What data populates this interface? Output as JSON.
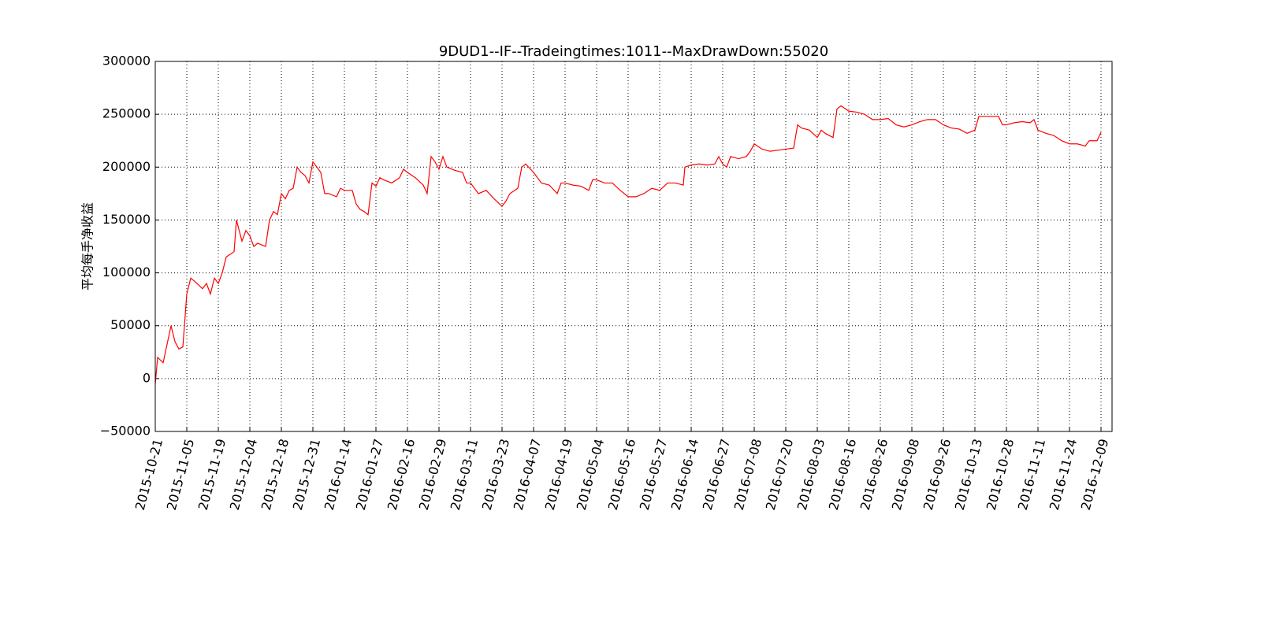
{
  "chart_data": {
    "type": "line",
    "title": "9DUD1--IF--Tradeingtimes:1011--MaxDrawDown:55020",
    "y_label": "平均每手净收益",
    "grid": true,
    "xlim": [
      0,
      1214
    ],
    "ylim": [
      -50000,
      300000
    ],
    "yticks": [
      {
        "value": -50000,
        "label": "−50000"
      },
      0,
      50000,
      100000,
      150000,
      200000,
      250000,
      300000
    ],
    "xticks": [
      {
        "value": 0,
        "label": "2015-10-21"
      },
      {
        "value": 40,
        "label": "2015-11-05"
      },
      {
        "value": 80,
        "label": "2015-11-19"
      },
      {
        "value": 120,
        "label": "2015-12-04"
      },
      {
        "value": 160,
        "label": "2015-12-18"
      },
      {
        "value": 200,
        "label": "2015-12-31"
      },
      {
        "value": 240,
        "label": "2016-01-14"
      },
      {
        "value": 280,
        "label": "2016-01-27"
      },
      {
        "value": 320,
        "label": "2016-02-16"
      },
      {
        "value": 360,
        "label": "2016-02-29"
      },
      {
        "value": 400,
        "label": "2016-03-11"
      },
      {
        "value": 440,
        "label": "2016-03-23"
      },
      {
        "value": 480,
        "label": "2016-04-07"
      },
      {
        "value": 520,
        "label": "2016-04-19"
      },
      {
        "value": 560,
        "label": "2016-05-04"
      },
      {
        "value": 600,
        "label": "2016-05-16"
      },
      {
        "value": 640,
        "label": "2016-05-27"
      },
      {
        "value": 680,
        "label": "2016-06-14"
      },
      {
        "value": 720,
        "label": "2016-06-27"
      },
      {
        "value": 760,
        "label": "2016-07-08"
      },
      {
        "value": 800,
        "label": "2016-07-20"
      },
      {
        "value": 840,
        "label": "2016-08-03"
      },
      {
        "value": 880,
        "label": "2016-08-16"
      },
      {
        "value": 920,
        "label": "2016-08-26"
      },
      {
        "value": 960,
        "label": "2016-09-08"
      },
      {
        "value": 1000,
        "label": "2016-09-26"
      },
      {
        "value": 1040,
        "label": "2016-10-13"
      },
      {
        "value": 1080,
        "label": "2016-10-28"
      },
      {
        "value": 1120,
        "label": "2016-11-11"
      },
      {
        "value": 1160,
        "label": "2016-11-24"
      },
      {
        "value": 1200,
        "label": "2016-12-09"
      }
    ],
    "series": [
      {
        "color": "#ff0000",
        "x": [
          0,
          3,
          10,
          20,
          25,
          30,
          35,
          40,
          45,
          50,
          60,
          65,
          70,
          75,
          80,
          85,
          90,
          100,
          103,
          110,
          115,
          120,
          125,
          130,
          140,
          145,
          150,
          155,
          160,
          165,
          170,
          175,
          180,
          185,
          190,
          195,
          200,
          205,
          210,
          215,
          220,
          230,
          235,
          240,
          250,
          255,
          260,
          265,
          270,
          275,
          280,
          285,
          290,
          300,
          310,
          315,
          320,
          330,
          340,
          345,
          350,
          355,
          360,
          365,
          370,
          380,
          390,
          395,
          400,
          410,
          420,
          430,
          440,
          445,
          450,
          460,
          465,
          470,
          480,
          490,
          500,
          510,
          515,
          520,
          530,
          540,
          550,
          555,
          560,
          570,
          580,
          590,
          600,
          610,
          620,
          630,
          640,
          650,
          660,
          670,
          672,
          680,
          690,
          700,
          710,
          715,
          720,
          725,
          730,
          740,
          750,
          755,
          760,
          770,
          780,
          790,
          800,
          810,
          815,
          820,
          830,
          840,
          845,
          850,
          860,
          865,
          870,
          880,
          890,
          900,
          910,
          920,
          930,
          940,
          950,
          960,
          970,
          980,
          990,
          1000,
          1010,
          1020,
          1030,
          1040,
          1045,
          1050,
          1060,
          1070,
          1075,
          1080,
          1090,
          1100,
          1110,
          1115,
          1120,
          1130,
          1140,
          1150,
          1160,
          1170,
          1180,
          1185,
          1190,
          1195,
          1200
        ],
        "values": [
          -5000,
          20000,
          15000,
          50000,
          35000,
          28000,
          30000,
          80000,
          95000,
          92000,
          85000,
          90000,
          80000,
          95000,
          90000,
          100000,
          115000,
          120000,
          150000,
          130000,
          140000,
          135000,
          125000,
          128000,
          125000,
          150000,
          158000,
          155000,
          175000,
          170000,
          178000,
          180000,
          200000,
          195000,
          192000,
          185000,
          205000,
          200000,
          195000,
          175000,
          175000,
          172000,
          180000,
          178000,
          178000,
          165000,
          160000,
          158000,
          155000,
          185000,
          182000,
          190000,
          188000,
          185000,
          190000,
          198000,
          195000,
          190000,
          183000,
          175000,
          210000,
          205000,
          198000,
          210000,
          200000,
          197000,
          195000,
          185000,
          185000,
          175000,
          178000,
          170000,
          163000,
          168000,
          175000,
          180000,
          200000,
          203000,
          195000,
          185000,
          183000,
          175000,
          185000,
          185000,
          183000,
          182000,
          178000,
          188000,
          188000,
          185000,
          185000,
          178000,
          172000,
          172000,
          175000,
          180000,
          178000,
          185000,
          185000,
          183000,
          200000,
          202000,
          203000,
          202000,
          203000,
          210000,
          203000,
          200000,
          210000,
          208000,
          210000,
          215000,
          222000,
          217000,
          215000,
          216000,
          217000,
          218000,
          240000,
          237000,
          235000,
          228000,
          235000,
          232000,
          228000,
          255000,
          258000,
          253000,
          252000,
          250000,
          245000,
          245000,
          246000,
          240000,
          238000,
          240000,
          243000,
          245000,
          245000,
          240000,
          237000,
          236000,
          232000,
          235000,
          248000,
          248000,
          248000,
          248000,
          240000,
          240000,
          242000,
          243000,
          242000,
          245000,
          235000,
          232000,
          230000,
          225000,
          222000,
          222000,
          220000,
          225000,
          225000,
          225000,
          233000
        ]
      }
    ]
  }
}
